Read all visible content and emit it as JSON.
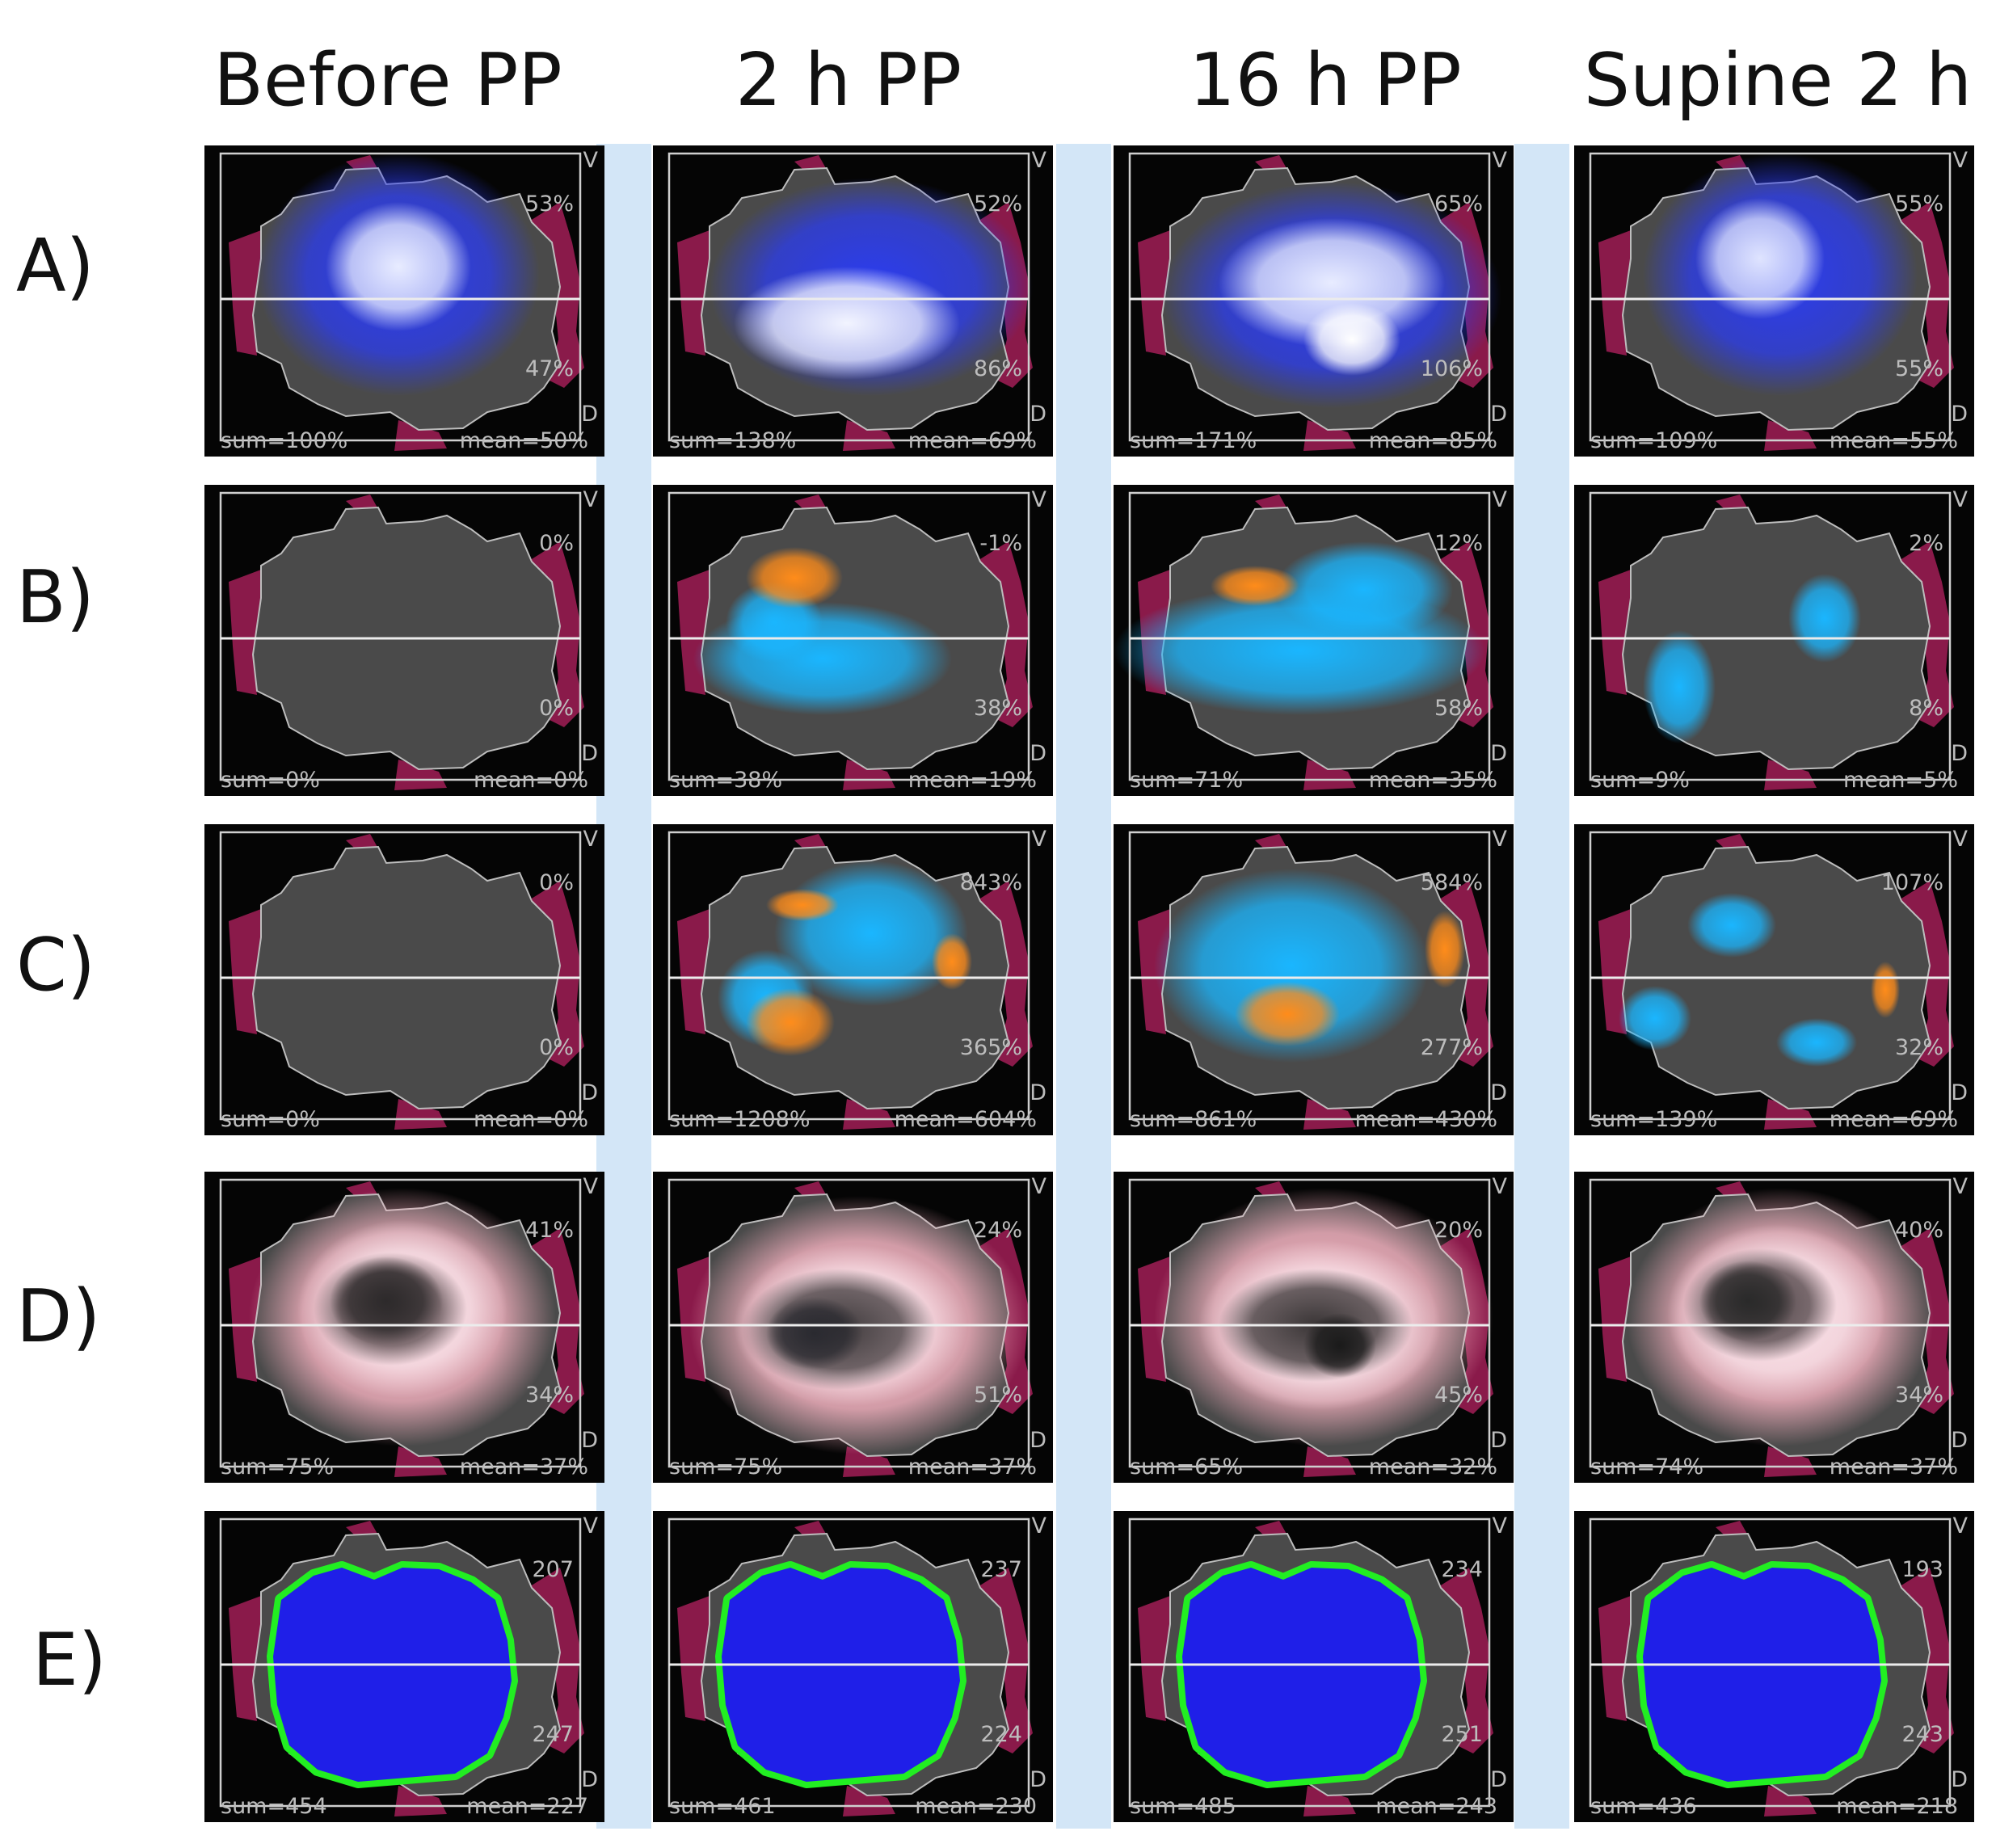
{
  "columns": [
    "Before PP",
    "2 h PP",
    "16 h PP",
    "Supine 2 h"
  ],
  "rows": [
    {
      "label": "A)",
      "panels": [
        {
          "top": "53%",
          "bottom": "47%",
          "sum": "sum=100%",
          "mean": "mean=50%"
        },
        {
          "top": "52%",
          "bottom": "86%",
          "sum": "sum=138%",
          "mean": "mean=69%"
        },
        {
          "top": "65%",
          "bottom": "106%",
          "sum": "sum=171%",
          "mean": "mean=85%"
        },
        {
          "top": "55%",
          "bottom": "55%",
          "sum": "sum=109%",
          "mean": "mean=55%"
        }
      ]
    },
    {
      "label": "B)",
      "panels": [
        {
          "top": "0%",
          "bottom": "0%",
          "sum": "sum=0%",
          "mean": "mean=0%"
        },
        {
          "top": "-1%",
          "bottom": "38%",
          "sum": "sum=38%",
          "mean": "mean=19%"
        },
        {
          "top": "12%",
          "bottom": "58%",
          "sum": "sum=71%",
          "mean": "mean=35%"
        },
        {
          "top": "2%",
          "bottom": "8%",
          "sum": "sum=9%",
          "mean": "mean=5%"
        }
      ]
    },
    {
      "label": "C)",
      "panels": [
        {
          "top": "0%",
          "bottom": "0%",
          "sum": "sum=0%",
          "mean": "mean=0%"
        },
        {
          "top": "843%",
          "bottom": "365%",
          "sum": "sum=1208%",
          "mean": "mean=604%"
        },
        {
          "top": "584%",
          "bottom": "277%",
          "sum": "sum=861%",
          "mean": "mean=430%"
        },
        {
          "top": "107%",
          "bottom": "32%",
          "sum": "sum=139%",
          "mean": "mean=69%"
        }
      ]
    },
    {
      "label": "D)",
      "panels": [
        {
          "top": "41%",
          "bottom": "34%",
          "sum": "sum=75%",
          "mean": "mean=37%"
        },
        {
          "top": "24%",
          "bottom": "51%",
          "sum": "sum=75%",
          "mean": "mean=37%"
        },
        {
          "top": "20%",
          "bottom": "45%",
          "sum": "sum=65%",
          "mean": "mean=32%"
        },
        {
          "top": "40%",
          "bottom": "34%",
          "sum": "sum=74%",
          "mean": "mean=37%"
        }
      ]
    },
    {
      "label": "E)",
      "panels": [
        {
          "top": "207",
          "bottom": "247",
          "sum": "sum=454",
          "mean": "mean=227"
        },
        {
          "top": "237",
          "bottom": "224",
          "sum": "sum=461",
          "mean": "mean=230"
        },
        {
          "top": "234",
          "bottom": "251",
          "sum": "sum=485",
          "mean": "mean=243"
        },
        {
          "top": "193",
          "bottom": "243",
          "sum": "sum=436",
          "mean": "mean=218"
        }
      ]
    }
  ],
  "axis_markers": {
    "top": "V",
    "bottom": "D"
  },
  "colors": {
    "band": "#d3e6f7",
    "panel_bg": "#050505",
    "lung_gray": "#4a4a4a",
    "maroon": "#8a1a4a",
    "ventilation_blue": "#2b3cf0",
    "increase_cyan": "#1ab6ff",
    "decrease_orange": "#ff8c1a",
    "rvd_pink": "#ffb7c6",
    "silent_blue": "#1f1fe8",
    "silent_green": "#22ee22"
  }
}
